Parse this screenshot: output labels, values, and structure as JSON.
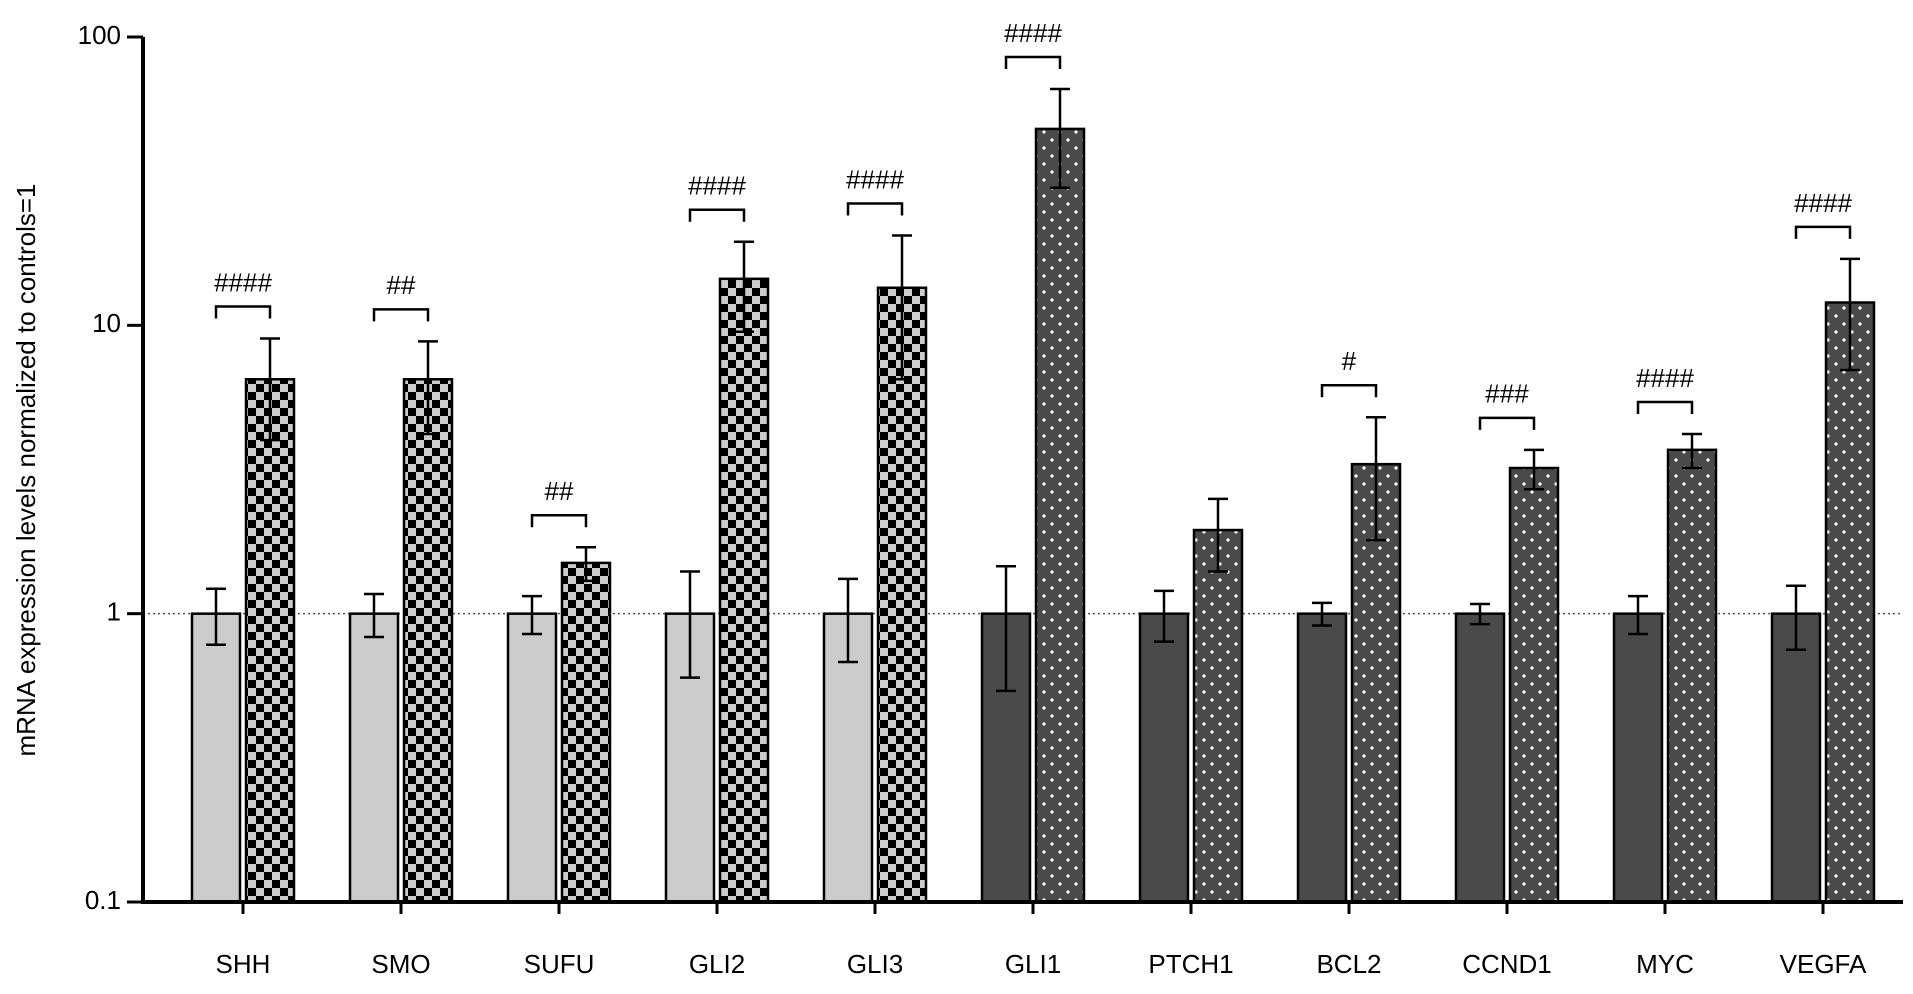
{
  "chart_data": {
    "type": "bar",
    "y_label": "mRNA expression levels normalized to controls=1",
    "log_scale": true,
    "ylim": [
      0.1,
      100
    ],
    "yticks": [
      0.1,
      1,
      10,
      100
    ],
    "reference_line": 1,
    "categories": [
      "SHH",
      "SMO",
      "SUFU",
      "GLI2",
      "GLI3",
      "GLI1",
      "PTCH1",
      "BCL2",
      "CCND1",
      "MYC",
      "VEGFA"
    ],
    "series": [
      {
        "colors": [
          "#cccccc",
          "#cccccc",
          "#cccccc",
          "#cccccc",
          "#cccccc",
          "#4a4a4a",
          "#4a4a4a",
          "#4a4a4a",
          "#4a4a4a",
          "#4a4a4a",
          "#4a4a4a"
        ],
        "patterns": [
          "solid",
          "solid",
          "solid",
          "solid",
          "solid",
          "solid",
          "solid",
          "solid",
          "solid",
          "solid",
          "solid"
        ],
        "values": [
          1,
          1,
          1,
          1,
          1,
          1,
          1,
          1,
          1,
          1,
          1
        ],
        "errors": [
          0.22,
          0.17,
          0.15,
          0.4,
          0.32,
          0.46,
          0.2,
          0.09,
          0.08,
          0.15,
          0.25
        ]
      },
      {
        "colors": [
          "#cccccc",
          "#cccccc",
          "#cccccc",
          "#cccccc",
          "#cccccc",
          "#4a4a4a",
          "#4a4a4a",
          "#4a4a4a",
          "#4a4a4a",
          "#4a4a4a",
          "#4a4a4a"
        ],
        "patterns": [
          "checker",
          "checker",
          "checker",
          "checker",
          "checker",
          "dots",
          "dots",
          "dots",
          "dots",
          "dots",
          "dots"
        ],
        "values": [
          6.5,
          6.5,
          1.5,
          14.5,
          13.5,
          48,
          1.95,
          3.3,
          3.2,
          3.7,
          12
        ],
        "errors": [
          2.5,
          2.3,
          0.2,
          5,
          7,
          18,
          0.55,
          1.5,
          0.5,
          0.5,
          5
        ]
      }
    ],
    "annotations": [
      "####",
      "##",
      "##",
      "####",
      "####",
      "####",
      null,
      "#",
      "###",
      "####",
      "####"
    ]
  }
}
